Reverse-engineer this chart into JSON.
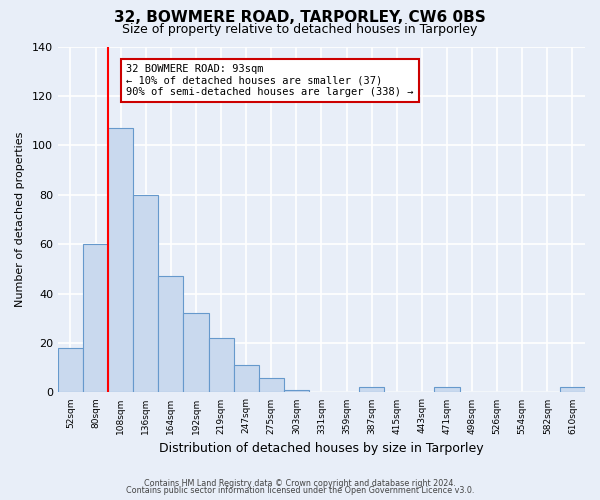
{
  "title": "32, BOWMERE ROAD, TARPORLEY, CW6 0BS",
  "subtitle": "Size of property relative to detached houses in Tarporley",
  "xlabel": "Distribution of detached houses by size in Tarporley",
  "ylabel": "Number of detached properties",
  "bin_labels": [
    "52sqm",
    "80sqm",
    "108sqm",
    "136sqm",
    "164sqm",
    "192sqm",
    "219sqm",
    "247sqm",
    "275sqm",
    "303sqm",
    "331sqm",
    "359sqm",
    "387sqm",
    "415sqm",
    "443sqm",
    "471sqm",
    "498sqm",
    "526sqm",
    "554sqm",
    "582sqm",
    "610sqm"
  ],
  "bar_heights": [
    18,
    60,
    107,
    80,
    47,
    32,
    22,
    11,
    6,
    1,
    0,
    0,
    2,
    0,
    0,
    2,
    0,
    0,
    0,
    0,
    2
  ],
  "bar_color": "#c9d9ee",
  "bar_edge_color": "#6699cc",
  "ylim": [
    0,
    140
  ],
  "yticks": [
    0,
    20,
    40,
    60,
    80,
    100,
    120,
    140
  ],
  "red_line_bin_idx": 2,
  "annotation_text": "32 BOWMERE ROAD: 93sqm\n← 10% of detached houses are smaller (37)\n90% of semi-detached houses are larger (338) →",
  "annotation_box_color": "#ffffff",
  "annotation_box_edge": "#cc0000",
  "footer_line1": "Contains HM Land Registry data © Crown copyright and database right 2024.",
  "footer_line2": "Contains public sector information licensed under the Open Government Licence v3.0.",
  "background_color": "#e8eef8",
  "grid_color": "#ffffff",
  "title_fontsize": 11,
  "subtitle_fontsize": 9
}
